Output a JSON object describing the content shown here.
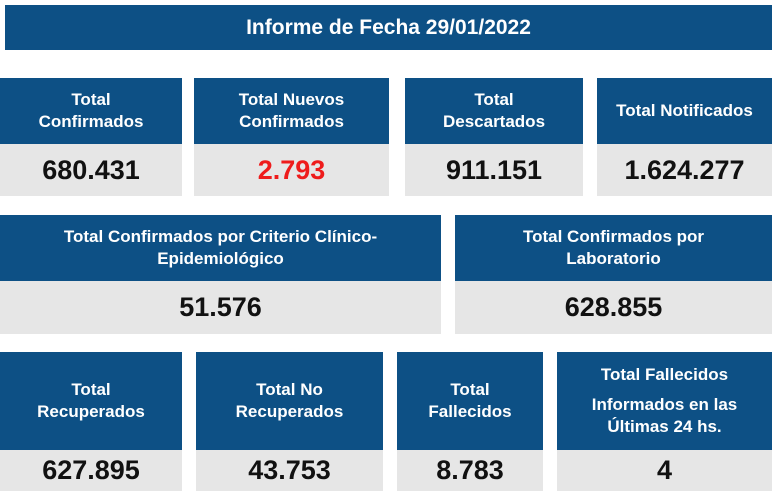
{
  "report": {
    "title": "Informe de Fecha 29/01/2022"
  },
  "row1": [
    {
      "label": "Total\nConfirmados",
      "value": "680.431"
    },
    {
      "label": "Total Nuevos\nConfirmados",
      "value": "2.793"
    },
    {
      "label": "Total\nDescartados",
      "value": "911.151"
    },
    {
      "label": "Total Notificados",
      "value": "1.624.277"
    }
  ],
  "row2": [
    {
      "label": "Total Confirmados por Criterio Clínico-\nEpidemiológico",
      "value": "51.576"
    },
    {
      "label": "Total Confirmados por\nLaboratorio",
      "value": "628.855"
    }
  ],
  "row3": [
    {
      "label": "Total\nRecuperados",
      "value": "627.895"
    },
    {
      "label": "Total No\nRecuperados",
      "value": "43.753"
    },
    {
      "label": "Total\nFallecidos",
      "value": "8.783"
    },
    {
      "label": "Total Fallecidos",
      "sublabel": "Informados en las\nÚltimas 24 hs.",
      "value": "4"
    }
  ],
  "colors": {
    "header_bg": "#0d5085",
    "value_bg": "#e6e6e6",
    "highlight": "#ee1c1c"
  }
}
